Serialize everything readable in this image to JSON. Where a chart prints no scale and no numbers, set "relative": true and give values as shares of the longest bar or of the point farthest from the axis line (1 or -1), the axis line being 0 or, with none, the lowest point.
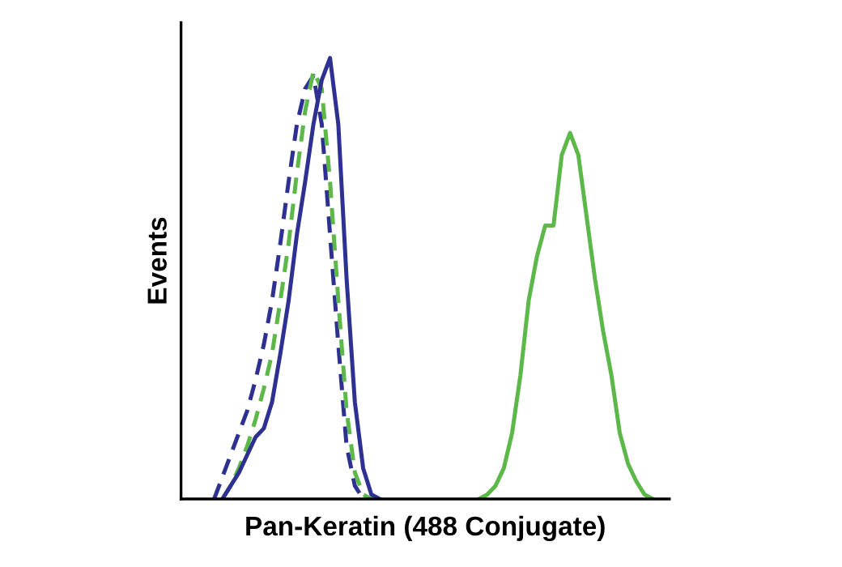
{
  "chart_data": {
    "type": "line",
    "relative": true,
    "xlabel": "Pan-Keratin (488 Conjugate)",
    "ylabel": "Events",
    "grid": false,
    "categories": [
      null,
      null,
      null,
      null,
      null,
      null,
      null,
      null,
      null,
      null,
      null,
      null,
      null,
      null,
      null,
      null,
      null,
      null,
      null,
      null,
      null,
      null,
      null,
      null,
      null,
      null,
      null,
      null,
      null,
      null,
      null,
      null,
      null,
      null,
      null,
      null,
      null,
      null,
      null,
      null,
      null,
      null,
      null,
      null,
      null,
      null,
      null,
      null,
      null,
      null,
      null,
      null,
      null,
      null,
      null,
      null,
      null,
      null,
      null,
      null
    ],
    "series": [
      {
        "color": "#2e3192",
        "line_style": "dashed",
        "values": [
          null,
          null,
          null,
          null,
          0,
          0.05,
          0.1,
          0.15,
          0.2,
          0.27,
          0.35,
          0.45,
          0.58,
          0.72,
          0.85,
          0.93,
          0.96,
          0.85,
          0.6,
          0.35,
          0.12,
          0.03,
          0,
          null,
          null,
          null,
          null,
          null,
          null,
          null,
          null,
          null,
          null,
          null,
          null,
          null,
          null,
          null,
          null,
          null,
          null,
          null,
          null,
          null,
          null,
          null,
          null,
          null,
          null,
          null,
          null,
          null,
          null,
          null,
          null,
          null,
          null,
          null,
          null,
          null
        ]
      },
      {
        "color": "#5cb849",
        "line_style": "dashed",
        "values": [
          null,
          null,
          null,
          null,
          null,
          0,
          0.03,
          0.07,
          0.12,
          0.18,
          0.25,
          0.33,
          0.45,
          0.58,
          0.74,
          0.88,
          0.97,
          0.93,
          0.72,
          0.45,
          0.2,
          0.06,
          0.01,
          0,
          null,
          null,
          null,
          null,
          null,
          null,
          null,
          null,
          null,
          null,
          null,
          null,
          null,
          null,
          null,
          null,
          null,
          null,
          null,
          null,
          null,
          null,
          null,
          null,
          null,
          null,
          null,
          null,
          null,
          null,
          null,
          null,
          null,
          null,
          null,
          null
        ]
      },
      {
        "color": "#2e3192",
        "line_style": "solid",
        "values": [
          null,
          null,
          null,
          null,
          null,
          0,
          0.03,
          0.06,
          0.1,
          0.14,
          0.16,
          0.22,
          0.33,
          0.45,
          0.6,
          0.72,
          0.85,
          0.95,
          1,
          0.85,
          0.5,
          0.22,
          0.07,
          0.01,
          0,
          null,
          null,
          null,
          null,
          null,
          null,
          null,
          null,
          null,
          null,
          null,
          null,
          null,
          null,
          null,
          null,
          null,
          null,
          null,
          null,
          null,
          null,
          null,
          null,
          null,
          null,
          null,
          null,
          null,
          null,
          null,
          null,
          null,
          null,
          null
        ]
      },
      {
        "color": "#5cb849",
        "line_style": "solid",
        "values": [
          null,
          null,
          null,
          null,
          null,
          null,
          null,
          null,
          null,
          null,
          null,
          null,
          null,
          null,
          null,
          null,
          null,
          null,
          null,
          null,
          null,
          null,
          null,
          null,
          null,
          null,
          null,
          null,
          null,
          null,
          null,
          null,
          null,
          null,
          null,
          null,
          0,
          0.01,
          0.03,
          0.07,
          0.15,
          0.28,
          0.45,
          0.55,
          0.62,
          0.62,
          0.78,
          0.83,
          0.78,
          0.64,
          0.5,
          0.38,
          0.28,
          0.15,
          0.08,
          0.04,
          0.01,
          0,
          null,
          null
        ]
      }
    ]
  }
}
